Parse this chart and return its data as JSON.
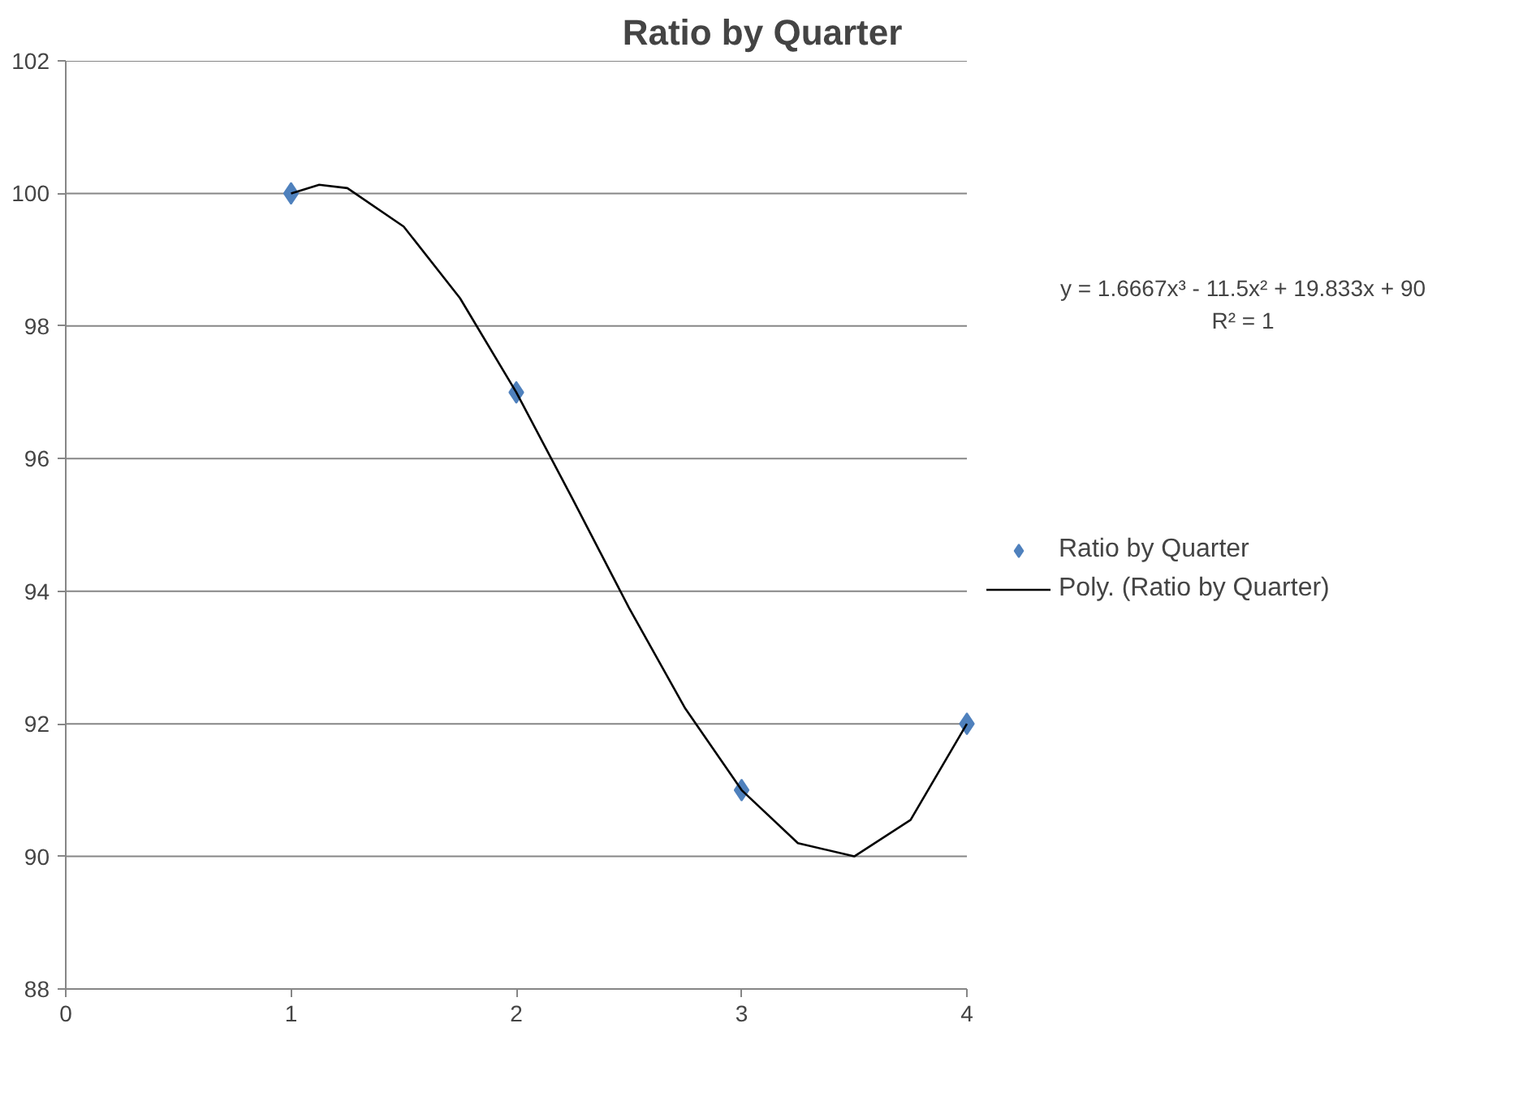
{
  "chart_data": {
    "type": "scatter",
    "title": "Ratio by Quarter",
    "series": [
      {
        "name": "Ratio by Quarter",
        "color": "#4f81bd",
        "marker": "diamond",
        "x": [
          1,
          2,
          3,
          4
        ],
        "values": [
          100,
          97,
          91,
          92
        ]
      },
      {
        "name": "Poly. (Ratio by Quarter)",
        "type": "line",
        "color": "#000000",
        "marker": "none",
        "line_style": "solid",
        "x": [
          1,
          1.125,
          1.25,
          1.5,
          1.75,
          2,
          2.25,
          2.5,
          2.75,
          3,
          3.25,
          3.5,
          3.75,
          4
        ],
        "values": [
          100,
          100.13,
          100.08,
          99.5,
          98.42,
          97,
          95.39,
          93.75,
          92.23,
          91,
          90.2,
          90,
          90.55,
          92
        ]
      }
    ],
    "xlim": [
      0,
      4
    ],
    "xticks": [
      0,
      1,
      2,
      3,
      4
    ],
    "ylim": [
      88,
      102
    ],
    "yticks": [
      88,
      90,
      92,
      94,
      96,
      98,
      100,
      102
    ],
    "grid": "y",
    "legend": "right",
    "annotations": [
      "y = 1.6667x³ - 11.5x² + 19.833x + 90",
      "R² = 1"
    ]
  }
}
